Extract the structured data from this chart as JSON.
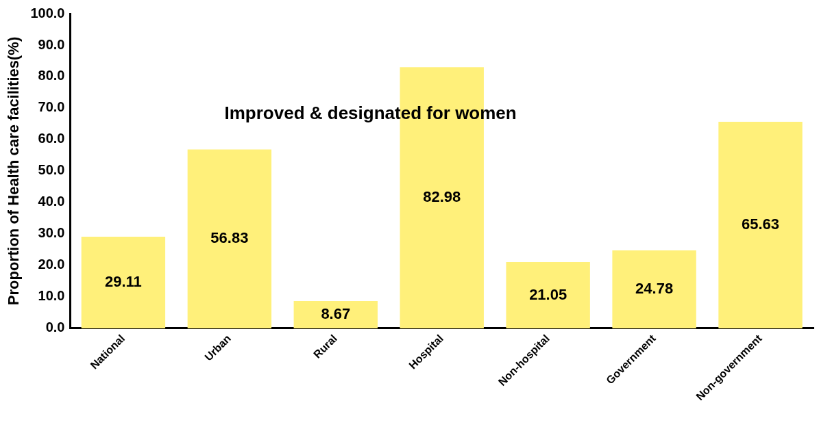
{
  "chart_data": {
    "type": "bar",
    "title": "Improved & designated for women",
    "ylabel": "Proportion of Health care facilities(%)",
    "categories": [
      "National",
      "Urban",
      "Rural",
      "Hospital",
      "Non-hospital",
      "Government",
      "Non-government"
    ],
    "values": [
      29.11,
      56.83,
      8.67,
      82.98,
      21.05,
      24.78,
      65.63
    ],
    "color": "#fff07a",
    "ylim": [
      0,
      100
    ],
    "yticks": [
      {
        "value": 0,
        "label": "0.0"
      },
      {
        "value": 10,
        "label": "10.0"
      },
      {
        "value": 20,
        "label": "20.0"
      },
      {
        "value": 30,
        "label": "30.0"
      },
      {
        "value": 40,
        "label": "40.0"
      },
      {
        "value": 50,
        "label": "50.0"
      },
      {
        "value": 60,
        "label": "60.0"
      },
      {
        "value": 70,
        "label": "70.0"
      },
      {
        "value": 80,
        "label": "80.0"
      },
      {
        "value": 90,
        "label": "90.0"
      },
      {
        "value": 100,
        "label": "100.0"
      }
    ],
    "grid": false,
    "data_labels": true
  }
}
